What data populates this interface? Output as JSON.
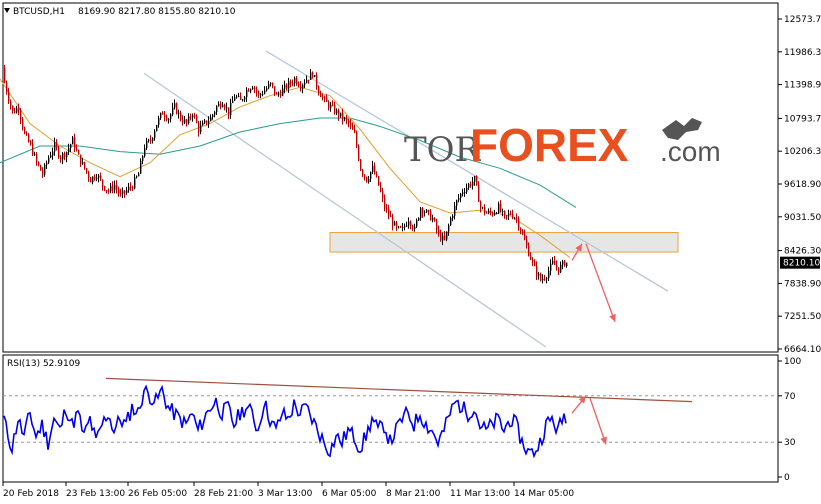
{
  "header": {
    "symbol": "BTCUSD,H1",
    "ohlc": "8169.90 8217.80 8155.80 8210.10",
    "rsi_label": "RSI(13) 52.9109"
  },
  "watermark": {
    "part1": "TOR",
    "part2": "FOREX",
    "part3": ".com"
  },
  "colors": {
    "bull": "#000000",
    "bear": "#c00000",
    "ma_fast": "#e0a030",
    "ma_slow": "#2a9d8f",
    "channel": "#b8c8d8",
    "zone_fill": "#e6e6e6",
    "zone_border": "#f0a040",
    "rsi_line": "#0000ee",
    "rsi_trend": "#a05040",
    "arrow": "#f06060",
    "last_price_bg": "#000000"
  },
  "chart_data": [
    {
      "type": "candlestick",
      "title": "BTCUSD,H1",
      "ylim": [
        6664.1,
        12573.7
      ],
      "y_ticks": [
        12573.7,
        11986.3,
        11398.9,
        10793.7,
        10206.3,
        9618.9,
        9031.5,
        8426.3,
        7838.9,
        7251.5,
        6664.1
      ],
      "y_tick_labels": [
        "12573.70",
        "11986.30",
        "11398.90",
        "10793.70",
        "10206.30",
        "9618.90",
        "9031.50",
        "8426.30",
        "7838.90",
        "7251.50",
        "6664.10"
      ],
      "last_price": 8210.1,
      "last_price_label": "8210.10",
      "x_labels": [
        "20 Feb 2018",
        "23 Feb 13:00",
        "26 Feb 05:00",
        "28 Feb 21:00",
        "3 Mar 13:00",
        "6 Mar 05:00",
        "8 Mar 21:00",
        "11 Mar 13:00",
        "14 Mar 05:00"
      ],
      "close_path": [
        [
          0,
          11700
        ],
        [
          6,
          11300
        ],
        [
          12,
          10900
        ],
        [
          18,
          11000
        ],
        [
          24,
          10500
        ],
        [
          30,
          10300
        ],
        [
          36,
          10000
        ],
        [
          42,
          9800
        ],
        [
          48,
          10100
        ],
        [
          54,
          10300
        ],
        [
          60,
          10100
        ],
        [
          66,
          10200
        ],
        [
          72,
          10400
        ],
        [
          78,
          10100
        ],
        [
          84,
          9900
        ],
        [
          90,
          9700
        ],
        [
          96,
          9800
        ],
        [
          102,
          9600
        ],
        [
          108,
          9500
        ],
        [
          114,
          9600
        ],
        [
          120,
          9400
        ],
        [
          126,
          9500
        ],
        [
          132,
          9600
        ],
        [
          138,
          9800
        ],
        [
          144,
          10300
        ],
        [
          150,
          10400
        ],
        [
          156,
          10700
        ],
        [
          162,
          10900
        ],
        [
          168,
          10800
        ],
        [
          174,
          11000
        ],
        [
          180,
          10800
        ],
        [
          186,
          10700
        ],
        [
          192,
          10900
        ],
        [
          198,
          10600
        ],
        [
          204,
          10700
        ],
        [
          210,
          10800
        ],
        [
          216,
          11000
        ],
        [
          222,
          11100
        ],
        [
          228,
          10900
        ],
        [
          234,
          11200
        ],
        [
          240,
          11100
        ],
        [
          246,
          11300
        ],
        [
          252,
          11400
        ],
        [
          258,
          11200
        ],
        [
          264,
          11300
        ],
        [
          270,
          11400
        ],
        [
          276,
          11200
        ],
        [
          282,
          11300
        ],
        [
          288,
          11400
        ],
        [
          294,
          11500
        ],
        [
          300,
          11400
        ],
        [
          306,
          11500
        ],
        [
          312,
          11600
        ],
        [
          318,
          11300
        ],
        [
          324,
          11100
        ],
        [
          330,
          11000
        ],
        [
          336,
          10900
        ],
        [
          342,
          10800
        ],
        [
          348,
          10700
        ],
        [
          354,
          10500
        ],
        [
          360,
          9900
        ],
        [
          366,
          9700
        ],
        [
          372,
          9900
        ],
        [
          378,
          9600
        ],
        [
          384,
          9200
        ],
        [
          390,
          9000
        ],
        [
          396,
          8800
        ],
        [
          402,
          8800
        ],
        [
          408,
          9000
        ],
        [
          414,
          8800
        ],
        [
          420,
          9200
        ],
        [
          426,
          9100
        ],
        [
          432,
          9000
        ],
        [
          438,
          8700
        ],
        [
          444,
          8600
        ],
        [
          450,
          9000
        ],
        [
          456,
          9300
        ],
        [
          462,
          9500
        ],
        [
          468,
          9600
        ],
        [
          474,
          9700
        ],
        [
          480,
          9200
        ],
        [
          486,
          9100
        ],
        [
          492,
          9100
        ],
        [
          498,
          9200
        ],
        [
          504,
          9000
        ],
        [
          510,
          9100
        ],
        [
          516,
          9000
        ],
        [
          522,
          8700
        ],
        [
          528,
          8400
        ],
        [
          534,
          8100
        ],
        [
          540,
          7900
        ],
        [
          546,
          8000
        ],
        [
          552,
          8200
        ],
        [
          558,
          8100
        ],
        [
          564,
          8210
        ]
      ],
      "ma_fast_path": [
        [
          0,
          11500
        ],
        [
          30,
          10700
        ],
        [
          60,
          10300
        ],
        [
          90,
          10000
        ],
        [
          120,
          9750
        ],
        [
          150,
          10000
        ],
        [
          180,
          10500
        ],
        [
          210,
          10700
        ],
        [
          240,
          11000
        ],
        [
          270,
          11200
        ],
        [
          300,
          11350
        ],
        [
          330,
          11200
        ],
        [
          360,
          10600
        ],
        [
          390,
          9900
        ],
        [
          420,
          9300
        ],
        [
          450,
          9100
        ],
        [
          480,
          9150
        ],
        [
          510,
          9050
        ],
        [
          540,
          8700
        ],
        [
          570,
          8300
        ]
      ],
      "ma_slow_path": [
        [
          0,
          10000
        ],
        [
          40,
          10300
        ],
        [
          80,
          10300
        ],
        [
          120,
          10200
        ],
        [
          160,
          10150
        ],
        [
          200,
          10300
        ],
        [
          240,
          10550
        ],
        [
          280,
          10700
        ],
        [
          320,
          10800
        ],
        [
          350,
          10800
        ],
        [
          380,
          10650
        ],
        [
          420,
          10400
        ],
        [
          460,
          10100
        ],
        [
          500,
          9900
        ],
        [
          540,
          9600
        ],
        [
          576,
          9200
        ]
      ],
      "channel_upper": [
        [
          266,
          12000
        ],
        [
          668,
          7700
        ]
      ],
      "channel_lower": [
        [
          144,
          11600
        ],
        [
          546,
          6700
        ]
      ],
      "zone": [
        8400,
        8750
      ],
      "zone_x": [
        330,
        678
      ],
      "arrow_up": [
        [
          572,
          8250
        ],
        [
          582,
          8550
        ]
      ],
      "arrow_down": [
        [
          586,
          8550
        ],
        [
          615,
          7150
        ]
      ]
    },
    {
      "type": "line",
      "title": "RSI(13) 52.9109",
      "ylim": [
        0,
        100
      ],
      "y_ticks": [
        100,
        70,
        30,
        0
      ],
      "y_tick_labels": [
        "100",
        "70",
        "30",
        "0"
      ],
      "levels": [
        70,
        30
      ],
      "rsi_last": 52.9109,
      "rsi_path": [
        [
          0,
          68
        ],
        [
          6,
          42
        ],
        [
          12,
          25
        ],
        [
          18,
          50
        ],
        [
          24,
          35
        ],
        [
          30,
          55
        ],
        [
          36,
          35
        ],
        [
          42,
          45
        ],
        [
          48,
          30
        ],
        [
          54,
          50
        ],
        [
          60,
          40
        ],
        [
          66,
          60
        ],
        [
          72,
          45
        ],
        [
          78,
          55
        ],
        [
          84,
          35
        ],
        [
          90,
          50
        ],
        [
          96,
          30
        ],
        [
          102,
          45
        ],
        [
          108,
          55
        ],
        [
          114,
          40
        ],
        [
          120,
          50
        ],
        [
          126,
          45
        ],
        [
          132,
          60
        ],
        [
          138,
          55
        ],
        [
          144,
          75
        ],
        [
          150,
          70
        ],
        [
          156,
          65
        ],
        [
          162,
          75
        ],
        [
          168,
          60
        ],
        [
          174,
          55
        ],
        [
          180,
          50
        ],
        [
          186,
          45
        ],
        [
          192,
          55
        ],
        [
          198,
          40
        ],
        [
          204,
          50
        ],
        [
          210,
          60
        ],
        [
          216,
          65
        ],
        [
          222,
          55
        ],
        [
          228,
          60
        ],
        [
          234,
          45
        ],
        [
          240,
          55
        ],
        [
          246,
          60
        ],
        [
          252,
          55
        ],
        [
          258,
          40
        ],
        [
          264,
          65
        ],
        [
          270,
          50
        ],
        [
          276,
          40
        ],
        [
          282,
          55
        ],
        [
          288,
          50
        ],
        [
          294,
          62
        ],
        [
          300,
          55
        ],
        [
          306,
          60
        ],
        [
          312,
          50
        ],
        [
          318,
          40
        ],
        [
          324,
          30
        ],
        [
          330,
          22
        ],
        [
          336,
          35
        ],
        [
          342,
          30
        ],
        [
          348,
          40
        ],
        [
          354,
          35
        ],
        [
          360,
          25
        ],
        [
          366,
          35
        ],
        [
          372,
          50
        ],
        [
          378,
          40
        ],
        [
          384,
          45
        ],
        [
          390,
          30
        ],
        [
          396,
          40
        ],
        [
          402,
          50
        ],
        [
          408,
          55
        ],
        [
          414,
          45
        ],
        [
          420,
          55
        ],
        [
          426,
          45
        ],
        [
          432,
          40
        ],
        [
          438,
          30
        ],
        [
          444,
          40
        ],
        [
          450,
          55
        ],
        [
          456,
          65
        ],
        [
          462,
          60
        ],
        [
          468,
          55
        ],
        [
          474,
          60
        ],
        [
          480,
          45
        ],
        [
          486,
          40
        ],
        [
          492,
          45
        ],
        [
          498,
          50
        ],
        [
          504,
          40
        ],
        [
          510,
          50
        ],
        [
          516,
          45
        ],
        [
          522,
          30
        ],
        [
          528,
          22
        ],
        [
          534,
          20
        ],
        [
          540,
          30
        ],
        [
          546,
          45
        ],
        [
          552,
          50
        ],
        [
          558,
          40
        ],
        [
          564,
          53
        ]
      ],
      "trend_line": [
        [
          106,
          85
        ],
        [
          692,
          65
        ]
      ],
      "arrow_up": [
        [
          572,
          55
        ],
        [
          586,
          70
        ]
      ],
      "arrow_down": [
        [
          590,
          68
        ],
        [
          606,
          28
        ]
      ]
    }
  ]
}
